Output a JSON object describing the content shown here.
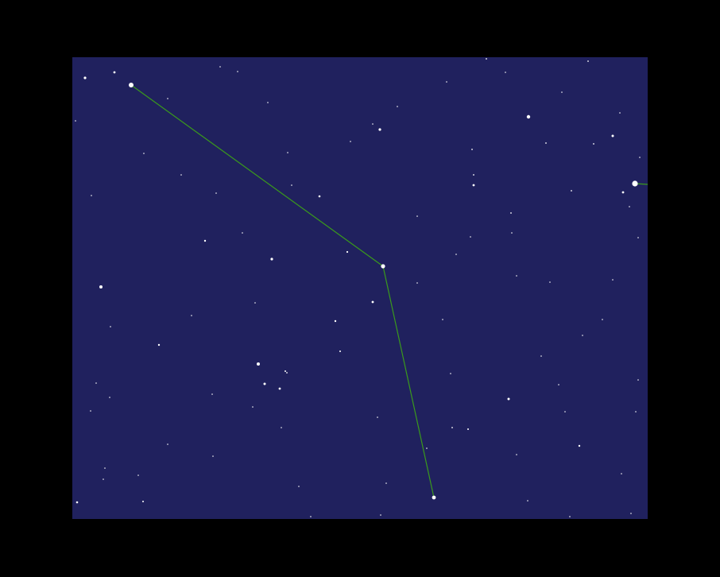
{
  "scene": {
    "background_color": "#000000",
    "sky_color": "#20215e",
    "star_color": "#ffffff",
    "constellation_line_color": "#3a9a1c"
  }
}
